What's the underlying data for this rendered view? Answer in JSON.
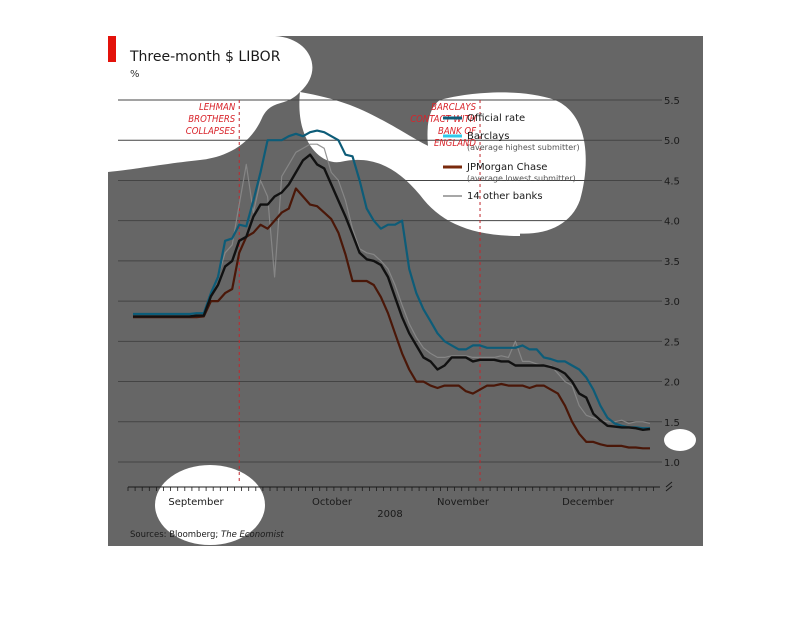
{
  "colors": {
    "plot_background": "#666666",
    "gridline": "#444444",
    "accent_red": "#e3120b",
    "official": "#0d5c78",
    "barclays": "#2ec9ea",
    "jpmorgan": "#4a1708",
    "other_banks": "#8a8a8a",
    "event_line": "#c0282e"
  },
  "chart_data": {
    "type": "line",
    "title": "Three-month $ LIBOR",
    "unit": "%",
    "year_label": "2008",
    "month_labels": [
      "September",
      "October",
      "November",
      "December"
    ],
    "ylim": [
      0.85,
      5.55
    ],
    "yticks": [
      "5.5",
      "5.0",
      "4.5",
      "4.0",
      "3.5",
      "3.0",
      "2.5",
      "2.0",
      "1.5",
      "1.0"
    ],
    "y_axis_break": true,
    "events": [
      {
        "label_lines": [
          "LEHMAN",
          "BROTHERS",
          "COLLAPSES"
        ],
        "day": 15
      },
      {
        "label_lines": [
          "BARCLAYS",
          "CONTACT WITH",
          "BANK OF",
          "ENGLAND"
        ],
        "day": 49
      }
    ],
    "legend": [
      {
        "key": "official",
        "label": "Official rate",
        "sub": ""
      },
      {
        "key": "barclays",
        "label": "Barclays",
        "sub": "(average highest submitter)"
      },
      {
        "key": "jpmorgan",
        "label": "JPMorgan Chase",
        "sub": "(average lowest submitter)"
      },
      {
        "key": "other_banks",
        "label": "14 other banks",
        "sub": ""
      }
    ],
    "series": [
      {
        "key": "barclays",
        "name": "Barclays",
        "values": [
          2.84,
          2.84,
          2.84,
          2.84,
          2.84,
          2.84,
          2.84,
          2.84,
          2.84,
          2.85,
          2.85,
          3.1,
          3.3,
          3.75,
          3.78,
          3.95,
          3.93,
          4.25,
          4.6,
          5.0,
          5.0,
          5.0,
          5.05,
          5.08,
          5.05,
          5.1,
          5.12,
          5.1,
          5.05,
          5.0,
          4.82,
          4.8,
          4.5,
          4.15,
          4.0,
          3.9,
          3.95,
          3.95,
          4.0,
          3.4,
          3.1,
          2.9,
          2.75,
          2.6,
          2.5,
          2.45,
          2.4,
          2.4,
          2.45,
          2.45,
          2.42,
          2.42,
          2.42,
          2.42,
          2.42,
          2.45,
          2.4,
          2.4,
          2.3,
          2.28,
          2.25,
          2.25,
          2.2,
          2.15,
          2.05,
          1.9,
          1.7,
          1.55,
          1.48,
          1.45,
          1.43,
          1.43,
          1.42,
          1.42
        ]
      },
      {
        "key": "official",
        "name": "Official rate",
        "values": [
          2.81,
          2.81,
          2.81,
          2.81,
          2.81,
          2.81,
          2.81,
          2.81,
          2.81,
          2.82,
          2.82,
          3.06,
          3.2,
          3.43,
          3.5,
          3.75,
          3.8,
          4.05,
          4.2,
          4.2,
          4.3,
          4.35,
          4.45,
          4.6,
          4.75,
          4.82,
          4.7,
          4.65,
          4.45,
          4.25,
          4.05,
          3.83,
          3.6,
          3.52,
          3.5,
          3.45,
          3.3,
          3.05,
          2.8,
          2.6,
          2.45,
          2.3,
          2.25,
          2.15,
          2.2,
          2.3,
          2.3,
          2.3,
          2.25,
          2.27,
          2.27,
          2.27,
          2.25,
          2.25,
          2.2,
          2.2,
          2.2,
          2.2,
          2.2,
          2.18,
          2.15,
          2.1,
          2.0,
          1.85,
          1.8,
          1.6,
          1.52,
          1.45,
          1.44,
          1.43,
          1.43,
          1.42,
          1.4,
          1.41
        ]
      },
      {
        "key": "jpmorgan",
        "name": "JPMorgan Chase",
        "values": [
          2.8,
          2.8,
          2.8,
          2.8,
          2.8,
          2.8,
          2.8,
          2.8,
          2.8,
          2.8,
          2.81,
          3.0,
          3.0,
          3.1,
          3.15,
          3.6,
          3.8,
          3.85,
          3.95,
          3.9,
          4.0,
          4.1,
          4.15,
          4.4,
          4.3,
          4.2,
          4.18,
          4.1,
          4.02,
          3.85,
          3.58,
          3.25,
          3.25,
          3.25,
          3.2,
          3.05,
          2.85,
          2.6,
          2.35,
          2.15,
          2.0,
          2.0,
          1.95,
          1.92,
          1.95,
          1.95,
          1.95,
          1.88,
          1.85,
          1.9,
          1.95,
          1.95,
          1.97,
          1.95,
          1.95,
          1.95,
          1.92,
          1.95,
          1.95,
          1.9,
          1.85,
          1.7,
          1.5,
          1.35,
          1.25,
          1.25,
          1.22,
          1.2,
          1.2,
          1.2,
          1.18,
          1.18,
          1.17,
          1.17
        ]
      },
      {
        "key": "other_banks",
        "name": "14 other banks",
        "values": [
          2.82,
          2.82,
          2.82,
          2.82,
          2.82,
          2.82,
          2.82,
          2.82,
          2.83,
          2.84,
          2.84,
          3.1,
          3.3,
          3.6,
          3.7,
          4.2,
          4.7,
          4.1,
          4.5,
          4.3,
          3.3,
          4.55,
          4.7,
          4.85,
          4.9,
          4.95,
          4.95,
          4.9,
          4.6,
          4.5,
          4.25,
          3.9,
          3.65,
          3.6,
          3.58,
          3.5,
          3.4,
          3.2,
          2.95,
          2.72,
          2.55,
          2.42,
          2.35,
          2.3,
          2.3,
          2.32,
          2.32,
          2.32,
          2.3,
          2.3,
          2.3,
          2.3,
          2.32,
          2.3,
          2.5,
          2.25,
          2.25,
          2.22,
          2.2,
          2.2,
          2.1,
          2.0,
          1.95,
          1.7,
          1.58,
          1.55,
          1.52,
          1.5,
          1.5,
          1.52,
          1.48,
          1.5,
          1.5,
          1.48
        ]
      }
    ]
  },
  "sources": {
    "prefix": "Sources: Bloomberg; ",
    "italic": "The Economist"
  }
}
